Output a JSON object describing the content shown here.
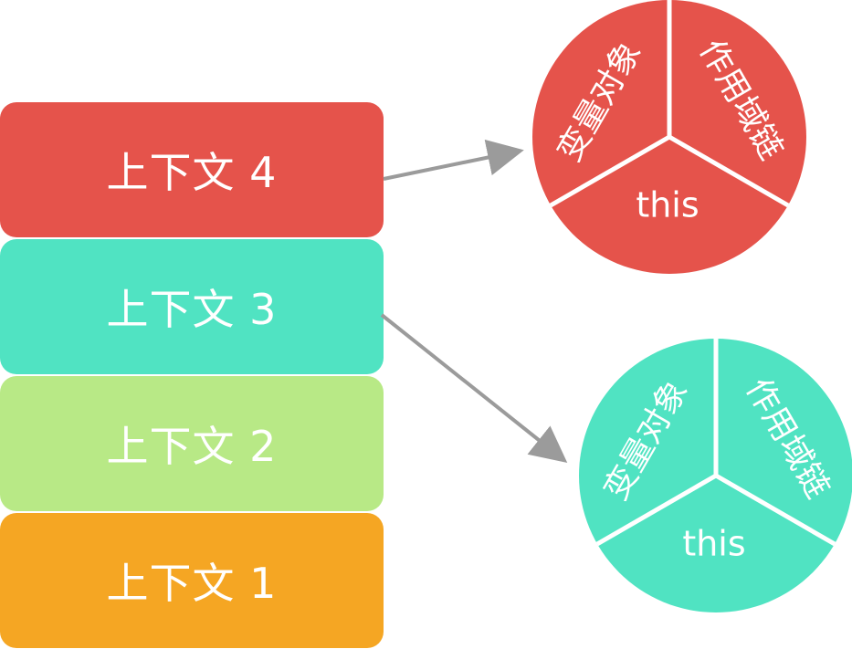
{
  "stack": {
    "items": [
      {
        "label": "上下文 4",
        "color": "#e5534b"
      },
      {
        "label": "上下文 3",
        "color": "#50e3c2"
      },
      {
        "label": "上下文 2",
        "color": "#b8e986"
      },
      {
        "label": "上下文 1",
        "color": "#f5a623"
      }
    ]
  },
  "contexts": [
    {
      "color": "#e5534b",
      "segments": {
        "variable_object": "变量对象",
        "scope_chain": "作用域链",
        "this": "this"
      }
    },
    {
      "color": "#50e3c2",
      "segments": {
        "variable_object": "变量对象",
        "scope_chain": "作用域链",
        "this": "this"
      }
    }
  ],
  "colors": {
    "arrow": "#9b9b9b",
    "divider": "#ffffff"
  }
}
